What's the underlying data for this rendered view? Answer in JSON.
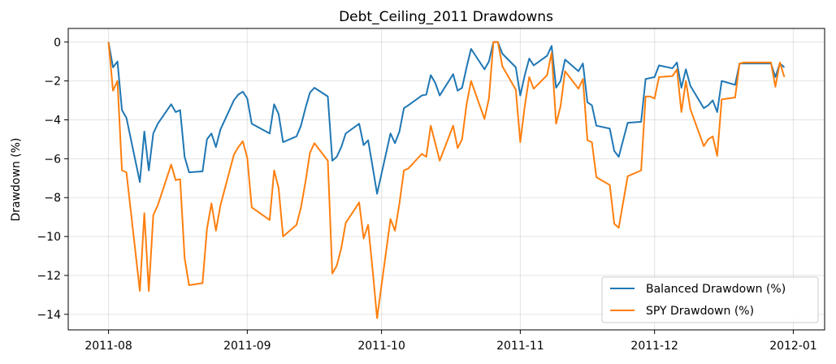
{
  "chart_data": {
    "type": "line",
    "title": "Debt_Ceiling_2011 Drawdowns",
    "xlabel": "",
    "ylabel": "Drawdown (%)",
    "xlim": [
      "2011-07-23",
      "2012-01-08"
    ],
    "ylim": [
      -14.8,
      0.7
    ],
    "x_ticks": [
      "2011-08-01",
      "2011-09-01",
      "2011-10-01",
      "2011-11-01",
      "2011-12-01",
      "2012-01-01"
    ],
    "x_tick_labels": [
      "2011-08",
      "2011-09",
      "2011-10",
      "2011-11",
      "2011-12",
      "2012-01"
    ],
    "y_ticks": [
      0,
      -2,
      -4,
      -6,
      -8,
      -10,
      -12,
      -14
    ],
    "y_tick_labels": [
      "0",
      "−2",
      "−4",
      "−6",
      "−8",
      "−10",
      "−12",
      "−14"
    ],
    "grid": true,
    "legend_position": "bottom-right",
    "series": [
      {
        "name": "Balanced Drawdown (%)",
        "color": "#1f77b4",
        "x": [
          "2011-08-01",
          "2011-08-02",
          "2011-08-03",
          "2011-08-04",
          "2011-08-05",
          "2011-08-08",
          "2011-08-09",
          "2011-08-10",
          "2011-08-11",
          "2011-08-12",
          "2011-08-15",
          "2011-08-16",
          "2011-08-17",
          "2011-08-18",
          "2011-08-19",
          "2011-08-22",
          "2011-08-23",
          "2011-08-24",
          "2011-08-25",
          "2011-08-26",
          "2011-08-29",
          "2011-08-30",
          "2011-08-31",
          "2011-09-01",
          "2011-09-02",
          "2011-09-06",
          "2011-09-07",
          "2011-09-08",
          "2011-09-09",
          "2011-09-12",
          "2011-09-13",
          "2011-09-14",
          "2011-09-15",
          "2011-09-16",
          "2011-09-19",
          "2011-09-20",
          "2011-09-21",
          "2011-09-22",
          "2011-09-23",
          "2011-09-26",
          "2011-09-27",
          "2011-09-28",
          "2011-09-29",
          "2011-09-30",
          "2011-10-03",
          "2011-10-04",
          "2011-10-05",
          "2011-10-06",
          "2011-10-07",
          "2011-10-10",
          "2011-10-11",
          "2011-10-12",
          "2011-10-13",
          "2011-10-14",
          "2011-10-17",
          "2011-10-18",
          "2011-10-19",
          "2011-10-20",
          "2011-10-21",
          "2011-10-24",
          "2011-10-25",
          "2011-10-26",
          "2011-10-27",
          "2011-10-28",
          "2011-10-31",
          "2011-11-01",
          "2011-11-02",
          "2011-11-03",
          "2011-11-04",
          "2011-11-07",
          "2011-11-08",
          "2011-11-09",
          "2011-11-10",
          "2011-11-11",
          "2011-11-14",
          "2011-11-15",
          "2011-11-16",
          "2011-11-17",
          "2011-11-18",
          "2011-11-21",
          "2011-11-22",
          "2011-11-23",
          "2011-11-25",
          "2011-11-28",
          "2011-11-29",
          "2011-11-30",
          "2011-12-01",
          "2011-12-02",
          "2011-12-05",
          "2011-12-06",
          "2011-12-07",
          "2011-12-08",
          "2011-12-09",
          "2011-12-12",
          "2011-12-13",
          "2011-12-14",
          "2011-12-15",
          "2011-12-16",
          "2011-12-19",
          "2011-12-20",
          "2011-12-21",
          "2011-12-22",
          "2011-12-23",
          "2011-12-27",
          "2011-12-28",
          "2011-12-29",
          "2011-12-30"
        ],
        "values": [
          0.0,
          -1.3,
          -1.0,
          -3.5,
          -3.9,
          -7.2,
          -4.6,
          -6.6,
          -4.7,
          -4.2,
          -3.2,
          -3.6,
          -3.5,
          -5.9,
          -6.7,
          -6.65,
          -5.0,
          -4.7,
          -5.4,
          -4.5,
          -3.0,
          -2.7,
          -2.55,
          -2.9,
          -4.2,
          -4.7,
          -3.2,
          -3.7,
          -5.15,
          -4.85,
          -4.3,
          -3.4,
          -2.6,
          -2.35,
          -2.8,
          -6.1,
          -5.9,
          -5.4,
          -4.7,
          -4.2,
          -5.3,
          -5.05,
          -6.4,
          -7.8,
          -4.7,
          -5.2,
          -4.6,
          -3.4,
          -3.25,
          -2.75,
          -2.7,
          -1.7,
          -2.1,
          -2.75,
          -1.65,
          -2.5,
          -2.35,
          -1.3,
          -0.35,
          -1.4,
          -1.0,
          0.0,
          0.0,
          -0.6,
          -1.3,
          -2.75,
          -1.7,
          -0.85,
          -1.2,
          -0.7,
          -0.2,
          -2.35,
          -2.0,
          -0.9,
          -1.5,
          -1.1,
          -3.1,
          -3.25,
          -4.3,
          -4.45,
          -5.6,
          -5.9,
          -4.15,
          -4.1,
          -1.9,
          -1.85,
          -1.8,
          -1.2,
          -1.35,
          -1.05,
          -2.35,
          -1.4,
          -2.25,
          -3.4,
          -3.25,
          -3.0,
          -3.6,
          -2.0,
          -2.2,
          -1.1,
          -1.1,
          -1.1,
          -1.1,
          -1.1,
          -1.8,
          -1.1,
          -1.3
        ]
      },
      {
        "name": "SPY Drawdown (%)",
        "color": "#ff7f0e",
        "x": [
          "2011-08-01",
          "2011-08-02",
          "2011-08-03",
          "2011-08-04",
          "2011-08-05",
          "2011-08-08",
          "2011-08-09",
          "2011-08-10",
          "2011-08-11",
          "2011-08-12",
          "2011-08-15",
          "2011-08-16",
          "2011-08-17",
          "2011-08-18",
          "2011-08-19",
          "2011-08-22",
          "2011-08-23",
          "2011-08-24",
          "2011-08-25",
          "2011-08-26",
          "2011-08-29",
          "2011-08-30",
          "2011-08-31",
          "2011-09-01",
          "2011-09-02",
          "2011-09-06",
          "2011-09-07",
          "2011-09-08",
          "2011-09-09",
          "2011-09-12",
          "2011-09-13",
          "2011-09-14",
          "2011-09-15",
          "2011-09-16",
          "2011-09-19",
          "2011-09-20",
          "2011-09-21",
          "2011-09-22",
          "2011-09-23",
          "2011-09-26",
          "2011-09-27",
          "2011-09-28",
          "2011-09-29",
          "2011-09-30",
          "2011-10-03",
          "2011-10-04",
          "2011-10-05",
          "2011-10-06",
          "2011-10-07",
          "2011-10-10",
          "2011-10-11",
          "2011-10-12",
          "2011-10-13",
          "2011-10-14",
          "2011-10-17",
          "2011-10-18",
          "2011-10-19",
          "2011-10-20",
          "2011-10-21",
          "2011-10-24",
          "2011-10-25",
          "2011-10-26",
          "2011-10-27",
          "2011-10-28",
          "2011-10-31",
          "2011-11-01",
          "2011-11-02",
          "2011-11-03",
          "2011-11-04",
          "2011-11-07",
          "2011-11-08",
          "2011-11-09",
          "2011-11-10",
          "2011-11-11",
          "2011-11-14",
          "2011-11-15",
          "2011-11-16",
          "2011-11-17",
          "2011-11-18",
          "2011-11-21",
          "2011-11-22",
          "2011-11-23",
          "2011-11-25",
          "2011-11-28",
          "2011-11-29",
          "2011-11-30",
          "2011-12-01",
          "2011-12-02",
          "2011-12-05",
          "2011-12-06",
          "2011-12-07",
          "2011-12-08",
          "2011-12-09",
          "2011-12-12",
          "2011-12-13",
          "2011-12-14",
          "2011-12-15",
          "2011-12-16",
          "2011-12-19",
          "2011-12-20",
          "2011-12-21",
          "2011-12-22",
          "2011-12-23",
          "2011-12-27",
          "2011-12-28",
          "2011-12-29",
          "2011-12-30"
        ],
        "values": [
          0.0,
          -2.5,
          -2.0,
          -6.6,
          -6.7,
          -12.8,
          -8.8,
          -12.8,
          -8.9,
          -8.4,
          -6.3,
          -7.1,
          -7.05,
          -11.1,
          -12.5,
          -12.4,
          -9.6,
          -8.3,
          -9.7,
          -8.4,
          -5.8,
          -5.4,
          -5.1,
          -5.95,
          -8.5,
          -9.15,
          -6.6,
          -7.5,
          -10.0,
          -9.4,
          -8.5,
          -7.2,
          -5.7,
          -5.2,
          -6.1,
          -11.9,
          -11.5,
          -10.6,
          -9.3,
          -8.25,
          -10.1,
          -9.4,
          -11.7,
          -14.2,
          -9.1,
          -9.7,
          -8.3,
          -6.6,
          -6.5,
          -5.75,
          -5.9,
          -4.3,
          -5.2,
          -6.1,
          -4.3,
          -5.45,
          -5.0,
          -3.2,
          -2.0,
          -3.95,
          -2.9,
          0.0,
          0.0,
          -1.25,
          -2.45,
          -5.15,
          -3.3,
          -1.8,
          -2.4,
          -1.7,
          -0.55,
          -4.2,
          -3.3,
          -1.5,
          -2.4,
          -1.9,
          -5.05,
          -5.15,
          -6.95,
          -7.35,
          -9.35,
          -9.55,
          -6.9,
          -6.6,
          -2.8,
          -2.8,
          -2.9,
          -1.8,
          -1.75,
          -1.4,
          -3.6,
          -2.0,
          -3.45,
          -5.35,
          -5.0,
          -4.85,
          -5.85,
          -2.95,
          -2.85,
          -1.1,
          -1.05,
          -1.05,
          -1.05,
          -1.05,
          -2.3,
          -1.05,
          -1.8
        ]
      }
    ]
  }
}
